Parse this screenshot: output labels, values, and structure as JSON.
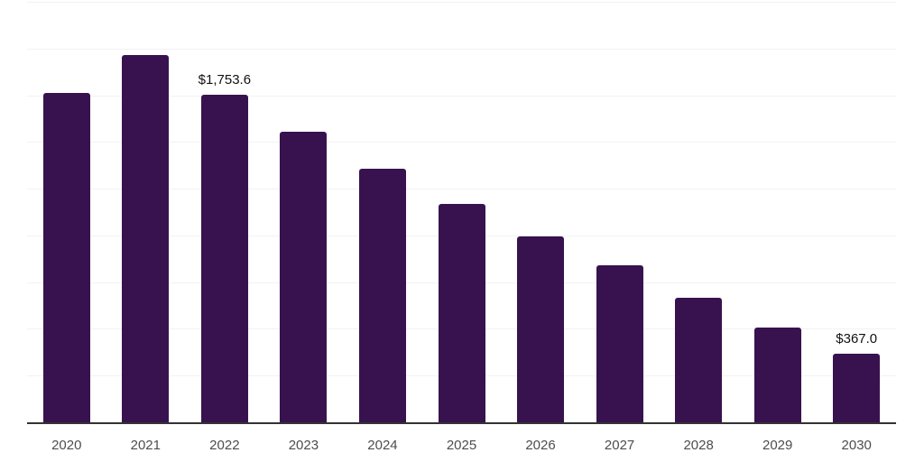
{
  "chart_data": {
    "type": "bar",
    "title": "",
    "xlabel": "",
    "ylabel": "",
    "categories": [
      "2020",
      "2021",
      "2022",
      "2023",
      "2024",
      "2025",
      "2026",
      "2027",
      "2028",
      "2029",
      "2030"
    ],
    "values": [
      1764,
      1966,
      1753.6,
      1555,
      1358,
      1168,
      993,
      839,
      666,
      508,
      367.0
    ],
    "data_labels": [
      {
        "index": 2,
        "text": "$1,753.6"
      },
      {
        "index": 10,
        "text": "$367.0"
      }
    ],
    "ylim": [
      0,
      2250
    ],
    "gridline_step": 250,
    "grid": true,
    "legend": "none",
    "value_unit": "USD",
    "colors": {
      "bar": "#38124e",
      "axis_line": "#333333",
      "gridline": "#f2f2f2",
      "tick_label": "#4d4d4d",
      "data_label": "#111111",
      "background": "#ffffff"
    }
  }
}
